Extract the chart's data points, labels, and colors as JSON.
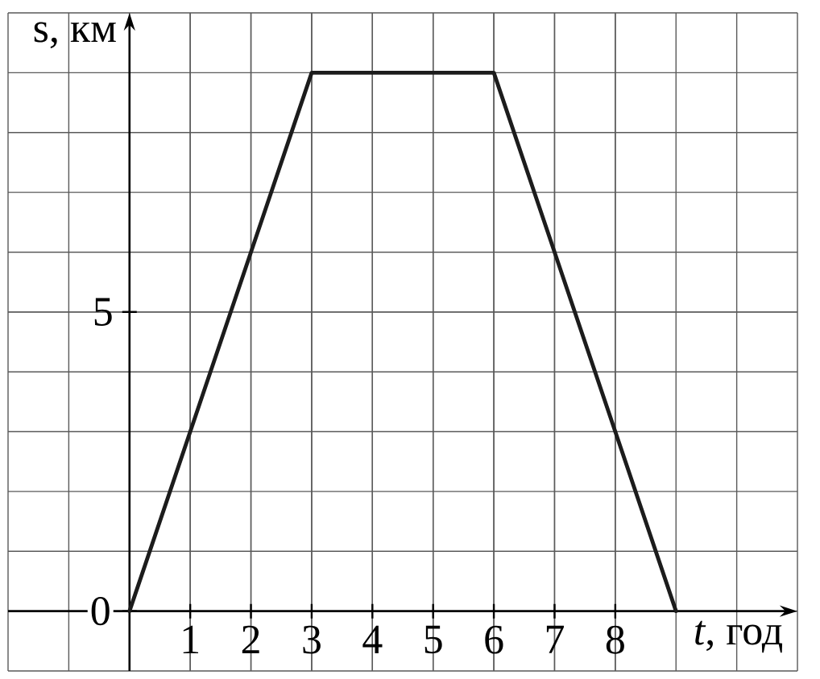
{
  "chart_data": {
    "type": "line",
    "xlabel": "*t*, год",
    "ylabel": "s, км",
    "x": [
      0,
      3,
      6,
      9
    ],
    "values": [
      0,
      9,
      9,
      0
    ],
    "color": "#1c1c1c",
    "xlim": [
      -2,
      11
    ],
    "ylim": [
      -1,
      10
    ],
    "xticks": [
      1,
      2,
      3,
      4,
      5,
      6,
      7,
      8
    ],
    "yticks": [
      0,
      5
    ],
    "grid": true
  }
}
